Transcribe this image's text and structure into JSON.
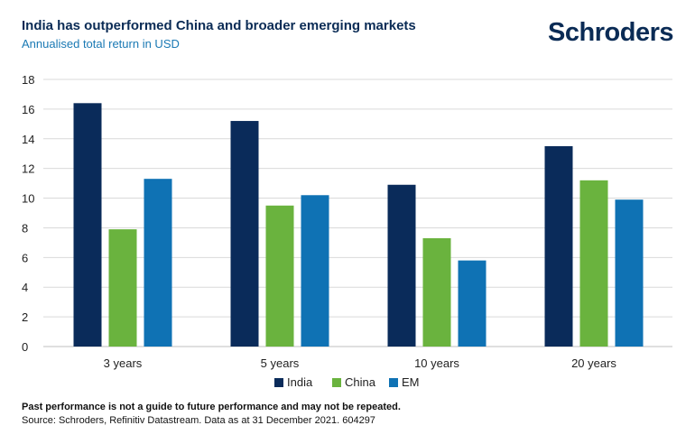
{
  "header": {
    "title": "India has outperformed China and broader emerging markets",
    "subtitle": "Annualised total return in USD",
    "logo_text": "Schroders"
  },
  "footer": {
    "note": "Past performance is not a guide to future performance and may not be repeated.",
    "source": "Source: Schroders, Refinitiv Datastream. Data as at 31 December 2021. 604297"
  },
  "colors": {
    "India": "#0a2b5a",
    "China": "#6ab33e",
    "EM": "#0f72b4",
    "grid": "#d9d9d9",
    "axis_text": "#222222"
  },
  "chart_data": {
    "type": "bar",
    "title": "India has outperformed China and broader emerging markets",
    "subtitle": "Annualised total return in USD",
    "xlabel": "",
    "ylabel": "",
    "categories": [
      "3 years",
      "5 years",
      "10 years",
      "20 years"
    ],
    "series": [
      {
        "name": "India",
        "values": [
          16.4,
          15.2,
          10.9,
          13.5
        ]
      },
      {
        "name": "China",
        "values": [
          7.9,
          9.5,
          7.3,
          11.2
        ]
      },
      {
        "name": "EM",
        "values": [
          11.3,
          10.2,
          5.8,
          9.9
        ]
      }
    ],
    "ylim": [
      0,
      18
    ],
    "yticks": [
      "0",
      "2",
      "4",
      "6",
      "8",
      "10",
      "12",
      "14",
      "16",
      "18"
    ],
    "grid": true,
    "legend": "bottom-center"
  }
}
